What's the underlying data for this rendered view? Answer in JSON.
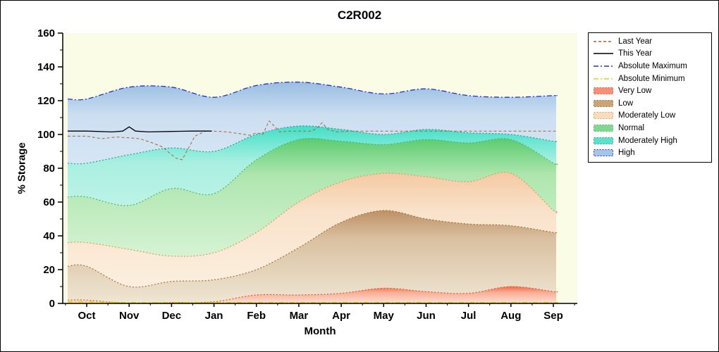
{
  "title": "C2R002",
  "chart_data": {
    "type": "area",
    "title": "C2R002",
    "xlabel": "Month",
    "ylabel": "% Storage",
    "ylim": [
      0,
      160
    ],
    "y_ticks": [
      0,
      20,
      40,
      60,
      80,
      100,
      120,
      140,
      160
    ],
    "categories": [
      "Oct",
      "Nov",
      "Dec",
      "Jan",
      "Feb",
      "Mar",
      "Apr",
      "May",
      "Jun",
      "Jul",
      "Aug",
      "Sep"
    ],
    "plot_background": "#FBFCE6",
    "bands": [
      {
        "name": "Very Low",
        "values": [
          2,
          0,
          0.5,
          1,
          5,
          5,
          6,
          9,
          7,
          6,
          10,
          7
        ],
        "edge": "#DD5A36",
        "gradient": [
          [
            "0%",
            "#F26A48"
          ],
          [
            "35%",
            "#F8AE96"
          ],
          [
            "100%",
            "#FCE0D6"
          ]
        ]
      },
      {
        "name": "Low",
        "values": [
          22,
          10,
          13,
          14,
          20,
          33,
          48,
          55,
          50,
          47,
          46,
          42
        ],
        "edge": "#A4703C",
        "gradient": [
          [
            "0%",
            "#BD9166"
          ],
          [
            "30%",
            "#D9C0A0"
          ],
          [
            "100%",
            "#EFE6D4"
          ]
        ]
      },
      {
        "name": "Moderately Low",
        "values": [
          36,
          32,
          28,
          30,
          42,
          60,
          72,
          77,
          75,
          72,
          77,
          55
        ],
        "edge": "#DE9C5E",
        "gradient": [
          [
            "0%",
            "#F5C9A2"
          ],
          [
            "30%",
            "#F9E2CA"
          ],
          [
            "100%",
            "#FCF2E4"
          ]
        ]
      },
      {
        "name": "Normal",
        "values": [
          63,
          58,
          68,
          65,
          85,
          97,
          96,
          94,
          97,
          95,
          97,
          83
        ],
        "edge": "#4FB468",
        "gradient": [
          [
            "0%",
            "#5BCB70"
          ],
          [
            "22%",
            "#AEE6AE"
          ],
          [
            "100%",
            "#EDFAEA"
          ]
        ]
      },
      {
        "name": "Moderately High",
        "values": [
          83,
          88,
          92,
          90,
          100,
          105,
          103,
          100,
          103,
          101,
          100,
          96
        ],
        "edge": "#2A9D9D",
        "gradient": [
          [
            "0%",
            "#41DFC7"
          ],
          [
            "20%",
            "#A8EFE0"
          ],
          [
            "100%",
            "#ECFBF7"
          ]
        ]
      },
      {
        "name": "High",
        "values": [
          121,
          128,
          128,
          122,
          129,
          131,
          128,
          124,
          127,
          123,
          122,
          123
        ],
        "edge": "#2430C8",
        "gradient": [
          [
            "0%",
            "#98BDE2"
          ],
          [
            "15%",
            "#CCDFF1"
          ],
          [
            "100%",
            "#F3F8FC"
          ]
        ]
      }
    ],
    "lines": [
      {
        "name": "Absolute Minimum",
        "color": "#DADA00",
        "dash": "7 3 2 3",
        "width": 1.6,
        "monthly": true,
        "values": [
          1,
          0.5,
          0.5,
          0.5,
          0.5,
          0.5,
          0.5,
          0.5,
          0.5,
          0.5,
          0.5,
          0.5
        ]
      },
      {
        "name": "Absolute Maximum",
        "color": "#2430C8",
        "dash": "7 3 2 3",
        "width": 1.3,
        "monthly": true,
        "values": [
          121,
          128,
          128,
          122,
          129,
          131,
          128,
          124,
          127,
          123,
          122,
          123
        ]
      },
      {
        "name": "Last Year",
        "color": "#A86432",
        "dash": "4 3",
        "width": 1,
        "x": [
          -0.45,
          0,
          0.35,
          0.7,
          1,
          1.25,
          1.55,
          1.8,
          1.95,
          2.1,
          2.25,
          2.4,
          2.55,
          2.8,
          3,
          3.3,
          3.6,
          3.85,
          4,
          4.15,
          4.3,
          4.42,
          4.55,
          4.8,
          5,
          5.3,
          5.42,
          5.55,
          5.68,
          5.9,
          6.2,
          6.6,
          7,
          7.5,
          8,
          8.5,
          9,
          9.5,
          10,
          10.5,
          11,
          11.07
        ],
        "y": [
          99,
          99,
          97.5,
          98.5,
          98,
          97.5,
          95,
          92.5,
          89,
          86,
          85,
          92,
          99,
          102,
          102,
          101.5,
          100.5,
          99.5,
          101,
          100,
          108,
          105,
          101.5,
          102,
          102,
          102,
          103.5,
          107,
          103,
          101.5,
          102,
          102,
          102,
          102,
          102,
          102,
          102,
          102,
          102,
          102,
          102,
          102
        ]
      },
      {
        "name": "This Year",
        "color": "#000000",
        "dash": "",
        "width": 1.3,
        "x": [
          -0.45,
          0,
          0.6,
          0.85,
          1.0,
          1.15,
          1.45,
          2,
          2.5,
          2.95
        ],
        "y": [
          102,
          102,
          101.5,
          102,
          104.5,
          102,
          101.5,
          101.8,
          102,
          102
        ]
      }
    ],
    "legend_items": [
      {
        "label": "Last Year",
        "type": "line",
        "color": "#A86432",
        "dash": "4 3"
      },
      {
        "label": "This Year",
        "type": "line",
        "color": "#000000",
        "dash": ""
      },
      {
        "label": "Absolute Maximum",
        "type": "line",
        "color": "#2430C8",
        "dash": "7 3 2 3"
      },
      {
        "label": "Absolute Minimum",
        "type": "line",
        "color": "#DADA00",
        "dash": "7 3 2 3"
      },
      {
        "label": "Very Low",
        "type": "fill",
        "fill": "#F4907A",
        "border": "#DD5A36"
      },
      {
        "label": "Low",
        "type": "fill",
        "fill": "#C9A478",
        "border": "#A4703C"
      },
      {
        "label": "Moderately Low",
        "type": "fill",
        "fill": "#F8DCBE",
        "border": "#DE9C5E"
      },
      {
        "label": "Normal",
        "type": "fill",
        "fill": "#7ED88E",
        "border": "#4FB468"
      },
      {
        "label": "Moderately High",
        "type": "fill",
        "fill": "#5CE2CA",
        "border": "#2A9D9D"
      },
      {
        "label": "High",
        "type": "fill",
        "fill": "#A6C6E8",
        "border": "#2430C8"
      }
    ]
  }
}
